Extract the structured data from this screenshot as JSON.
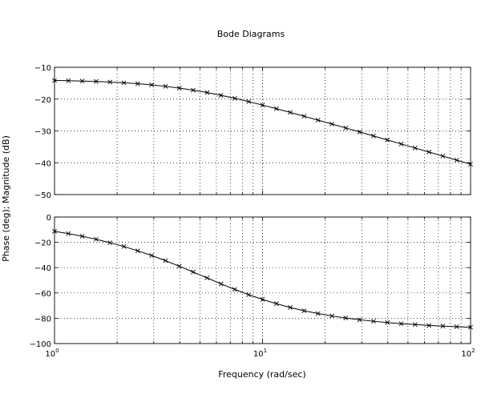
{
  "chart_data": [
    {
      "type": "line",
      "title": "Bode Diagrams",
      "xlabel": "Frequency (rad/sec)",
      "ylabel": "Phase (deg); Magnitude (dB)",
      "xscale": "log",
      "xlim": [
        1,
        100
      ],
      "ylim": [
        -50,
        -10
      ],
      "grid": true,
      "x_ticks": [
        1,
        10,
        100
      ],
      "x_tick_labels": [
        {
          "base": "10",
          "exp": "0"
        },
        {
          "base": "10",
          "exp": "1"
        },
        {
          "base": "10",
          "exp": "2"
        }
      ],
      "y_ticks": [
        -50,
        -40,
        -30,
        -20,
        -10
      ],
      "y_tick_labels": [
        "−50",
        "−40",
        "−30",
        "−20",
        "−10"
      ],
      "series": [
        {
          "marker": "x",
          "x": [
            1.0,
            1.166,
            1.359,
            1.585,
            1.848,
            2.154,
            2.512,
            2.929,
            3.415,
            3.981,
            4.642,
            5.412,
            6.31,
            7.356,
            8.577,
            10.0,
            11.66,
            13.59,
            15.85,
            18.48,
            21.54,
            25.12,
            29.29,
            34.15,
            39.81,
            46.42,
            54.12,
            63.1,
            73.56,
            85.77,
            100.0
          ],
          "y": [
            -14.15,
            -14.23,
            -14.33,
            -14.46,
            -14.64,
            -14.87,
            -15.16,
            -15.53,
            -15.99,
            -16.54,
            -17.19,
            -17.95,
            -18.81,
            -19.76,
            -20.79,
            -21.87,
            -23.01,
            -24.18,
            -25.38,
            -26.6,
            -27.83,
            -29.07,
            -30.32,
            -31.57,
            -32.83,
            -34.1,
            -35.36,
            -36.63,
            -37.91,
            -39.18,
            -40.46
          ]
        }
      ]
    },
    {
      "type": "line",
      "xscale": "log",
      "xlim": [
        1,
        100
      ],
      "ylim": [
        -100,
        0
      ],
      "grid": true,
      "x_ticks": [
        1,
        10,
        100
      ],
      "x_tick_labels": [
        {
          "base": "10",
          "exp": "0"
        },
        {
          "base": "10",
          "exp": "1"
        },
        {
          "base": "10",
          "exp": "2"
        }
      ],
      "y_ticks": [
        -100,
        -80,
        -60,
        -40,
        -20,
        0
      ],
      "y_tick_labels": [
        "−100",
        "−80",
        "−60",
        "−40",
        "−20",
        "0"
      ],
      "series": [
        {
          "marker": "x",
          "x": [
            1.0,
            1.166,
            1.359,
            1.585,
            1.848,
            2.154,
            2.512,
            2.929,
            3.415,
            3.981,
            4.642,
            5.412,
            6.31,
            7.356,
            8.577,
            10.0,
            11.66,
            13.59,
            15.85,
            18.48,
            21.54,
            25.12,
            29.29,
            34.15,
            39.81,
            46.42,
            54.12,
            63.1,
            73.56,
            85.77,
            100.0
          ],
          "y": [
            -11.3,
            -13.1,
            -15.2,
            -17.6,
            -20.3,
            -23.3,
            -26.7,
            -30.4,
            -34.5,
            -38.9,
            -43.5,
            -48.1,
            -52.8,
            -57.2,
            -61.4,
            -65.1,
            -68.5,
            -71.5,
            -74.1,
            -76.3,
            -78.2,
            -79.8,
            -81.2,
            -82.4,
            -83.4,
            -84.3,
            -85.0,
            -85.7,
            -86.2,
            -86.7,
            -87.1
          ]
        }
      ]
    }
  ]
}
